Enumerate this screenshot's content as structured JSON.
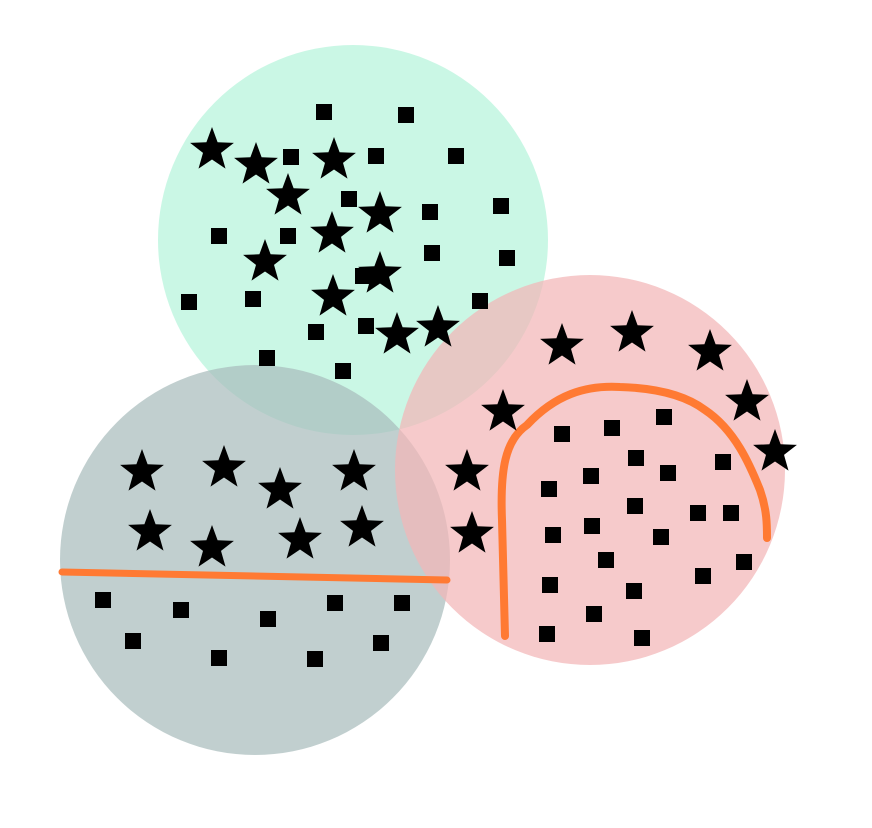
{
  "colors": {
    "background": "#ffffff",
    "region_green": "#bdf5df",
    "region_gray": "#a9bcbc",
    "region_pink": "#f3b6b7",
    "boundary": "#ff7a33",
    "marker": "#000000"
  },
  "regions": [
    {
      "id": "top",
      "color_key": "region_green",
      "boundary": "none"
    },
    {
      "id": "bottom-left",
      "color_key": "region_gray",
      "boundary": "linear"
    },
    {
      "id": "right",
      "color_key": "region_pink",
      "boundary": "arch"
    }
  ],
  "marker_types": {
    "star": "star-marker",
    "square": "square-marker"
  }
}
